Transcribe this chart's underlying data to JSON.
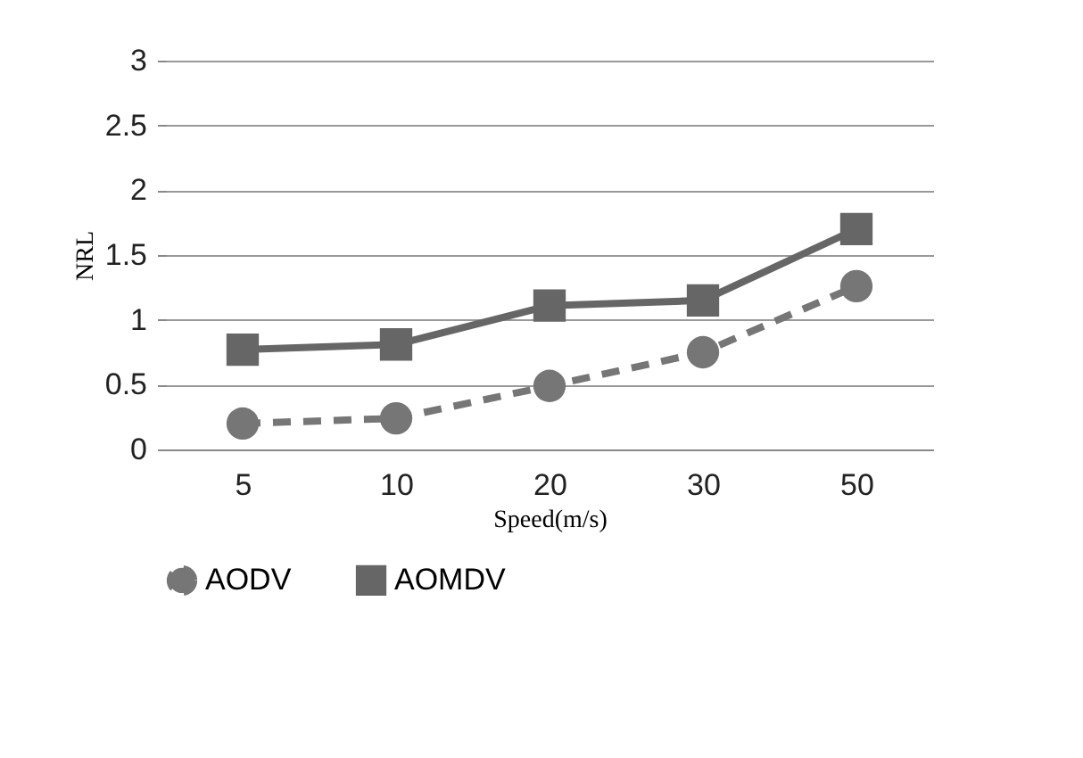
{
  "chart_data": {
    "type": "line",
    "xlabel": "Speed(m/s)",
    "ylabel": "NRL",
    "categories": [
      "5",
      "10",
      "20",
      "30",
      "50"
    ],
    "series": [
      {
        "name": "AODV",
        "color": "#767676",
        "values": [
          0.2,
          0.24,
          0.49,
          0.75,
          1.26
        ],
        "marker": "circle",
        "line_style": "dashed"
      },
      {
        "name": "AOMDV",
        "color": "#666666",
        "values": [
          0.77,
          0.81,
          1.11,
          1.15,
          1.7
        ],
        "marker": "square",
        "line_style": "solid"
      }
    ],
    "ylim": [
      0,
      3
    ],
    "yticks": [
      0,
      0.5,
      1,
      1.5,
      2,
      2.5,
      3
    ],
    "grid": "y",
    "legend": "bottom"
  }
}
